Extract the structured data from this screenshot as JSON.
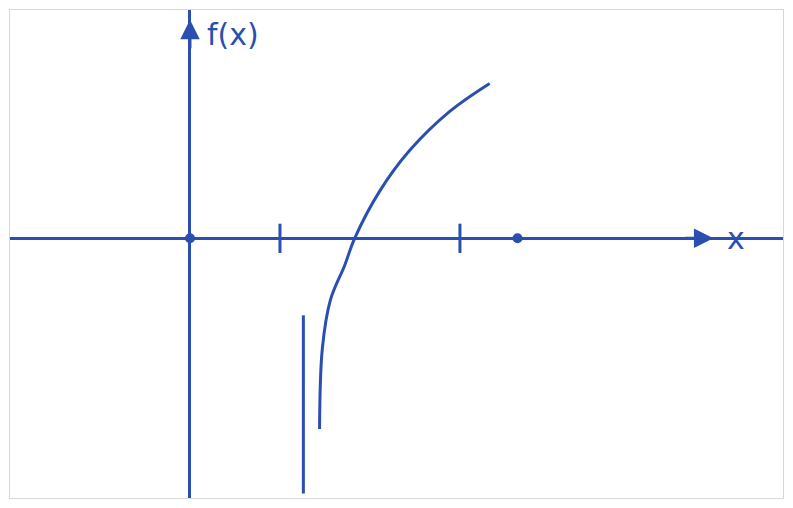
{
  "chart_data": {
    "type": "line",
    "x_label": "x",
    "y_label": "f(x)",
    "x": [
      1.44,
      1.47,
      1.56,
      1.72,
      1.83,
      2.11,
      2.44,
      2.89,
      3.33
    ],
    "values": [
      -2.13,
      -1.24,
      -0.69,
      -0.3,
      0,
      0.53,
      0.98,
      1.42,
      1.73
    ],
    "color": "#2a4fb0",
    "asymptote": {
      "x": 1.26,
      "ylim": [
        -2.85,
        -0.86
      ]
    },
    "points": {
      "x": [
        0,
        3.64
      ],
      "values": [
        0,
        0
      ]
    },
    "xlim": [
      -2.0,
      6.59
    ],
    "ylim": [
      -2.9,
      2.55
    ],
    "xticks": [
      1,
      3
    ],
    "yticks": [],
    "tick_labels": false,
    "grid": false
  }
}
